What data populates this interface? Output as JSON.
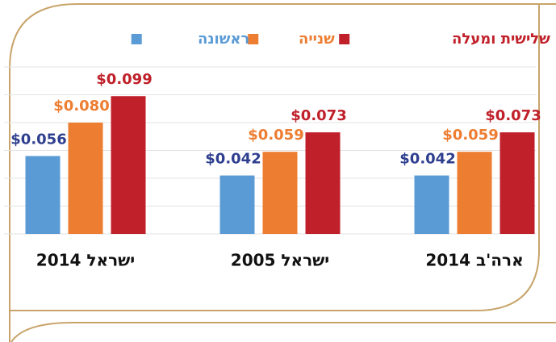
{
  "chart_data": {
    "type": "bar",
    "categories": [
      "ישראל 2014",
      "ישראל 2005",
      "ארה'ב 2014"
    ],
    "series": [
      {
        "name": "ראשונה",
        "color": "#5b9bd5",
        "values": [
          0.056,
          0.042,
          0.042
        ],
        "value_labels": [
          "$0.056",
          "$0.042",
          "$0.042"
        ]
      },
      {
        "name": "שנייה",
        "color": "#ed7d31",
        "values": [
          0.08,
          0.059,
          0.059
        ],
        "value_labels": [
          "$0.080",
          "$0.059",
          "$0.059"
        ]
      },
      {
        "name": "שלישית ומעלה",
        "color": "#c0202a",
        "values": [
          0.099,
          0.073,
          0.073
        ],
        "value_labels": [
          "$0.099",
          "$0.073",
          "$0.073"
        ]
      }
    ],
    "ylim": [
      0,
      0.12
    ],
    "yticks": [
      0,
      0.02,
      0.04,
      0.06,
      0.08,
      0.1,
      0.12
    ],
    "grid": true
  }
}
